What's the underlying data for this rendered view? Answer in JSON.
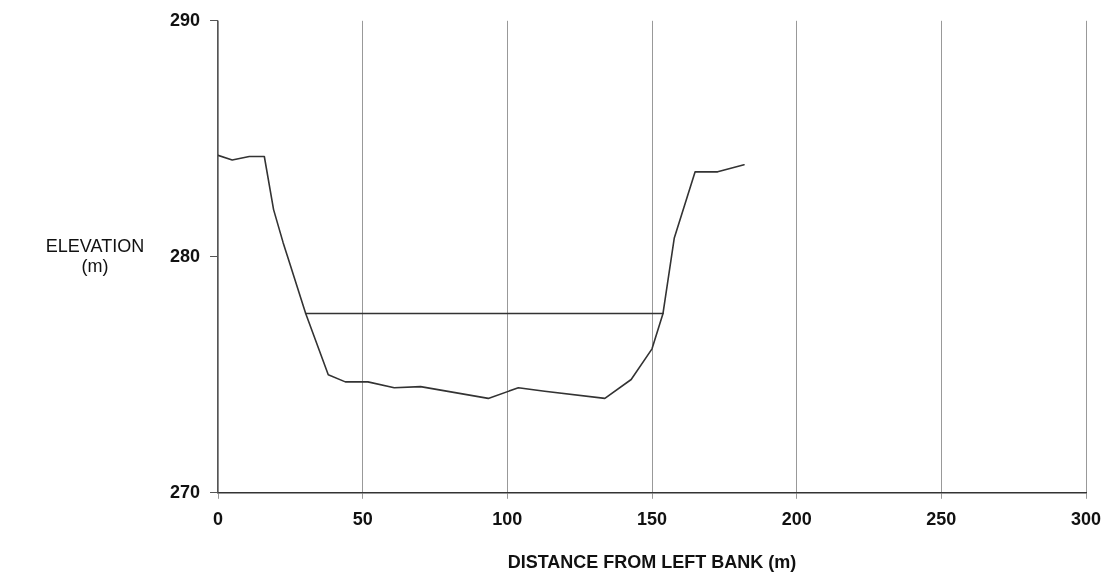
{
  "chart_data": {
    "type": "line",
    "xlabel": "DISTANCE FROM LEFT BANK (m)",
    "ylabel": "ELEVATION\n(m)",
    "xlim": [
      0,
      300
    ],
    "xticks": [
      0,
      50,
      100,
      150,
      200,
      250,
      300
    ],
    "ylim": [
      270,
      290
    ],
    "yticks": [
      270,
      280,
      290
    ],
    "grid": "x",
    "legend": false,
    "marker": "none",
    "line_style": "solid",
    "series": [
      {
        "color": "#333333",
        "x": [
          0,
          4.9,
          10.8,
          16,
          19.2,
          22.5,
          30.3,
          38.1,
          44,
          51.8,
          60.9,
          70,
          93.4,
          103.8,
          112.9,
          133.7,
          142.8,
          150,
          153.8,
          157.7,
          164.9,
          172.7,
          181.8
        ],
        "values": [
          284.3,
          284.1,
          284.25,
          284.25,
          282.0,
          280.6,
          277.6,
          275.0,
          274.7,
          274.7,
          274.45,
          274.5,
          274.0,
          274.45,
          274.3,
          274.0,
          274.8,
          276.1,
          277.6,
          280.8,
          283.6,
          283.6,
          283.9
        ]
      },
      {
        "color": "#333333",
        "x": [
          30.3,
          153.8
        ],
        "values": [
          277.6,
          277.6
        ]
      }
    ]
  }
}
